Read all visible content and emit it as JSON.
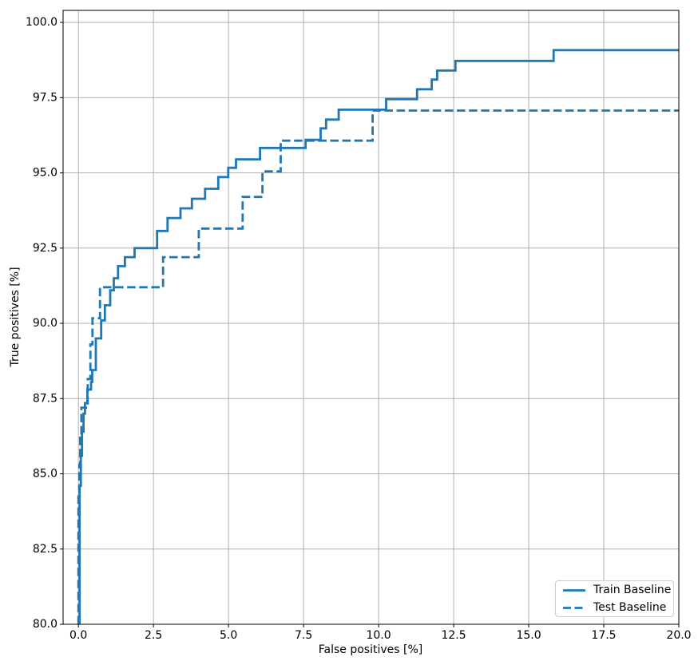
{
  "chart_data": {
    "type": "line",
    "subtype": "step_post_roc",
    "xlabel": "False positives [%]",
    "ylabel": "True positives [%]",
    "xlim": [
      -0.51,
      20
    ],
    "ylim": [
      80,
      100.4
    ],
    "x_ticks": [
      0,
      2.5,
      5,
      7.5,
      10,
      12.5,
      15,
      17.5,
      20
    ],
    "x_tick_labels": [
      "0.0",
      "2.5",
      "5.0",
      "7.5",
      "10.0",
      "12.5",
      "15.0",
      "17.5",
      "20.0"
    ],
    "y_ticks": [
      80,
      82.5,
      85,
      87.5,
      90,
      92.5,
      95,
      97.5,
      100
    ],
    "y_tick_labels": [
      "80.0",
      "82.5",
      "85.0",
      "87.5",
      "90.0",
      "92.5",
      "95.0",
      "97.5",
      "100.0"
    ],
    "grid": true,
    "legend_position": "lower right",
    "colors": {
      "line": "#1f77b4",
      "grid": "#b0b0b0",
      "spine": "#000000",
      "text": "#000000",
      "legend_border": "#cccccc"
    },
    "series": [
      {
        "name": "Train Baseline",
        "line_style": "solid",
        "line_width": 2.8,
        "start": [
          0.04,
          80
        ],
        "levels": [
          [
            0.04,
            84.6
          ],
          [
            0.08,
            85.6
          ],
          [
            0.12,
            86.4
          ],
          [
            0.17,
            87.0
          ],
          [
            0.22,
            87.35
          ],
          [
            0.3,
            87.8
          ],
          [
            0.42,
            88.05
          ],
          [
            0.46,
            88.45
          ],
          [
            0.58,
            89.5
          ],
          [
            0.76,
            90.1
          ],
          [
            0.88,
            90.6
          ],
          [
            1.06,
            91.1
          ],
          [
            1.18,
            91.5
          ],
          [
            1.32,
            91.9
          ],
          [
            1.55,
            92.2
          ],
          [
            1.87,
            92.5
          ],
          [
            2.62,
            93.07
          ],
          [
            2.97,
            93.5
          ],
          [
            3.4,
            93.82
          ],
          [
            3.78,
            94.14
          ],
          [
            4.22,
            94.47
          ],
          [
            4.66,
            94.86
          ],
          [
            4.99,
            95.17
          ],
          [
            5.25,
            95.45
          ],
          [
            6.05,
            95.83
          ],
          [
            7.57,
            96.1
          ],
          [
            8.07,
            96.48
          ],
          [
            8.25,
            96.77
          ],
          [
            8.67,
            97.1
          ],
          [
            10.25,
            97.45
          ],
          [
            11.28,
            97.78
          ],
          [
            11.77,
            98.1
          ],
          [
            11.95,
            98.4
          ],
          [
            12.56,
            98.72
          ],
          [
            15.83,
            99.08
          ]
        ],
        "end_x": 20
      },
      {
        "name": "Test Baseline",
        "line_style": "dashed",
        "line_width": 2.8,
        "start": [
          0.0,
          80
        ],
        "levels": [
          [
            0.0,
            84.3
          ],
          [
            0.03,
            85.3
          ],
          [
            0.06,
            86.2
          ],
          [
            0.1,
            87.2
          ],
          [
            0.31,
            88.15
          ],
          [
            0.4,
            89.3
          ],
          [
            0.47,
            90.17
          ],
          [
            0.72,
            91.2
          ],
          [
            2.82,
            92.2
          ],
          [
            4.01,
            93.15
          ],
          [
            5.47,
            94.2
          ],
          [
            6.13,
            95.05
          ],
          [
            6.74,
            96.07
          ],
          [
            9.8,
            97.07
          ]
        ],
        "end_x": 20
      }
    ]
  },
  "legend": {
    "items": [
      {
        "label": "Train Baseline",
        "style": "solid"
      },
      {
        "label": "Test Baseline",
        "style": "dashed"
      }
    ]
  }
}
